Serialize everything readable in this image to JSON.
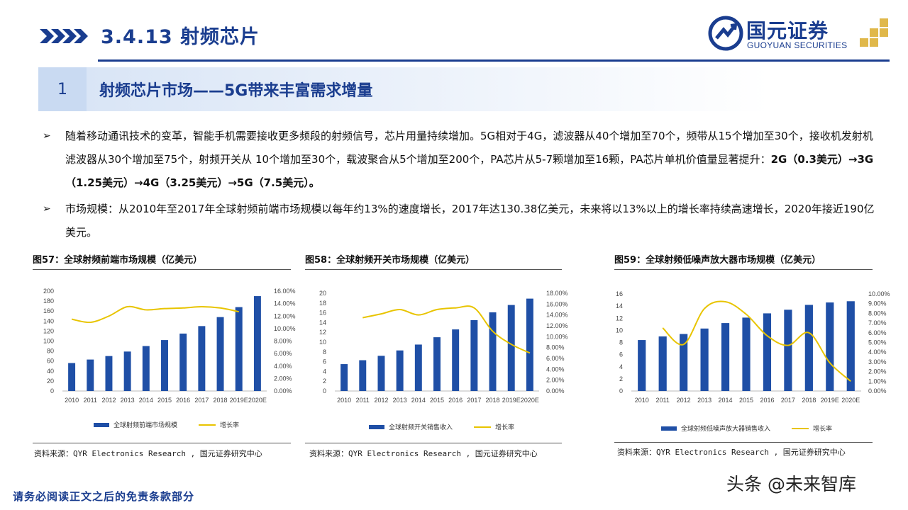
{
  "header": {
    "title": "3.4.13 射频芯片",
    "logo_cn": "国元证券",
    "logo_en": "GUOYUAN SECURITIES"
  },
  "section": {
    "number": "1",
    "title": "射频芯片市场——5G带来丰富需求增量"
  },
  "bullets": [
    {
      "text": "随着移动通讯技术的变革，智能手机需要接收更多频段的射频信号，芯片用量持续增加。5G相对于4G，滤波器从40个增加至70个，频带从15个增加至30个，接收机发射机滤波器从30个增加至75个，射频开关从 10个增加至30个，载波聚合从5个增加至200个，PA芯片从5-7颗增加至16颗，PA芯片单机价值量显著提升：",
      "strong": "2G（0.3美元）→3G（1.25美元）→4G（3.25美元）→5G（7.5美元）。"
    },
    {
      "text": "市场规模：从2010年至2017年全球射频前端市场规模以每年约13%的速度增长，2017年达130.38亿美元，未来将以13%以上的增长率持续高速增长，2020年接近190亿美元。",
      "strong": ""
    }
  ],
  "figures": [
    {
      "title": "图57：全球射频前端市场规模（亿美元）",
      "source": "资料来源：QYR Electronics Research , 国元证券研究中心",
      "legend_bar": "全球射频前端市场规模",
      "legend_line": "增长率"
    },
    {
      "title": "图58：全球射频开关市场规模（亿美元）",
      "source": "资料来源：QYR Electronics Research , 国元证券研究中心",
      "legend_bar": "全球射频开关销售收入",
      "legend_line": "增长率"
    },
    {
      "title": "图59：全球射频低噪声放大器市场规模（亿美元）",
      "source": "资料来源：QYR Electronics Research , 国元证券研究中心",
      "legend_bar": "全球射频低噪声放大器销售收入",
      "legend_line": "增长率"
    }
  ],
  "chart_data": [
    {
      "type": "bar",
      "categories": [
        "2010",
        "2011",
        "2012",
        "2013",
        "2014",
        "2015",
        "2016",
        "2017",
        "2018",
        "2019E",
        "2020E"
      ],
      "series": [
        {
          "name": "全球射频前端市场规模",
          "values": [
            56,
            63,
            70,
            79,
            90,
            102,
            115,
            130,
            148,
            168,
            190
          ],
          "axis": "left"
        },
        {
          "name": "增长率",
          "type": "line",
          "values": [
            0.115,
            0.11,
            0.12,
            0.135,
            0.13,
            0.132,
            0.133,
            0.135,
            0.133,
            0.127,
            null
          ],
          "axis": "right"
        }
      ],
      "yticks_left": [
        "200",
        "180",
        "160",
        "140",
        "120",
        "100",
        "80",
        "60",
        "40",
        "20",
        "0"
      ],
      "yticks_right": [
        "16.00%",
        "14.00%",
        "12.00%",
        "10.00%",
        "8.00%",
        "6.00%",
        "4.00%",
        "2.00%",
        "0.00%"
      ],
      "ylim_left": [
        0,
        200
      ],
      "ylim_right": [
        0,
        0.16
      ],
      "colors": {
        "bar": "#1f4fa6",
        "line": "#e8c400"
      }
    },
    {
      "type": "bar",
      "categories": [
        "2010",
        "2011",
        "2012",
        "2013",
        "2014",
        "2015",
        "2016",
        "2017",
        "2018",
        "2019E",
        "2020E"
      ],
      "series": [
        {
          "name": "全球射频开关销售收入",
          "values": [
            5.5,
            6.3,
            7.2,
            8.3,
            9.5,
            11,
            12.6,
            14.5,
            16.1,
            17.6,
            18.9
          ],
          "axis": "left"
        },
        {
          "name": "增长率",
          "type": "line",
          "values": [
            null,
            0.135,
            0.142,
            0.15,
            0.14,
            0.15,
            0.153,
            0.153,
            0.11,
            0.086,
            0.07
          ],
          "axis": "right"
        }
      ],
      "yticks_left": [
        "20",
        "18",
        "16",
        "14",
        "12",
        "10",
        "8",
        "6",
        "4",
        "2",
        "0"
      ],
      "yticks_right": [
        "18.00%",
        "16.00%",
        "14.00%",
        "12.00%",
        "10.00%",
        "8.00%",
        "6.00%",
        "4.00%",
        "2.00%",
        "0.00%"
      ],
      "ylim_left": [
        0,
        20
      ],
      "ylim_right": [
        0,
        0.18
      ],
      "colors": {
        "bar": "#1f4fa6",
        "line": "#e8c400"
      }
    },
    {
      "type": "bar",
      "categories": [
        "2010",
        "2011",
        "2012",
        "2013",
        "2014",
        "2015",
        "2016",
        "2017",
        "2018",
        "2019E",
        "2020E"
      ],
      "series": [
        {
          "name": "全球射频低噪声放大器销售收入",
          "values": [
            8.4,
            9,
            9.4,
            10.3,
            11.2,
            12.1,
            12.8,
            13.4,
            14.2,
            14.6,
            14.8
          ],
          "axis": "left"
        },
        {
          "name": "增长率",
          "type": "line",
          "values": [
            null,
            0.065,
            0.048,
            0.085,
            0.092,
            0.079,
            0.057,
            0.047,
            0.06,
            0.029,
            0.01
          ],
          "axis": "right"
        }
      ],
      "yticks_left": [
        "16",
        "14",
        "12",
        "10",
        "8",
        "6",
        "4",
        "2",
        "0"
      ],
      "yticks_right": [
        "10.00%",
        "9.00%",
        "8.00%",
        "7.00%",
        "6.00%",
        "5.00%",
        "4.00%",
        "3.00%",
        "2.00%",
        "1.00%",
        "0.00%"
      ],
      "ylim_left": [
        0,
        16
      ],
      "ylim_right": [
        0,
        0.1
      ],
      "colors": {
        "bar": "#1f4fa6",
        "line": "#e8c400"
      }
    }
  ],
  "footer": {
    "disclaimer": "请务必阅读正文之后的免责条款部分",
    "watermark": "头条 @未来智库"
  }
}
